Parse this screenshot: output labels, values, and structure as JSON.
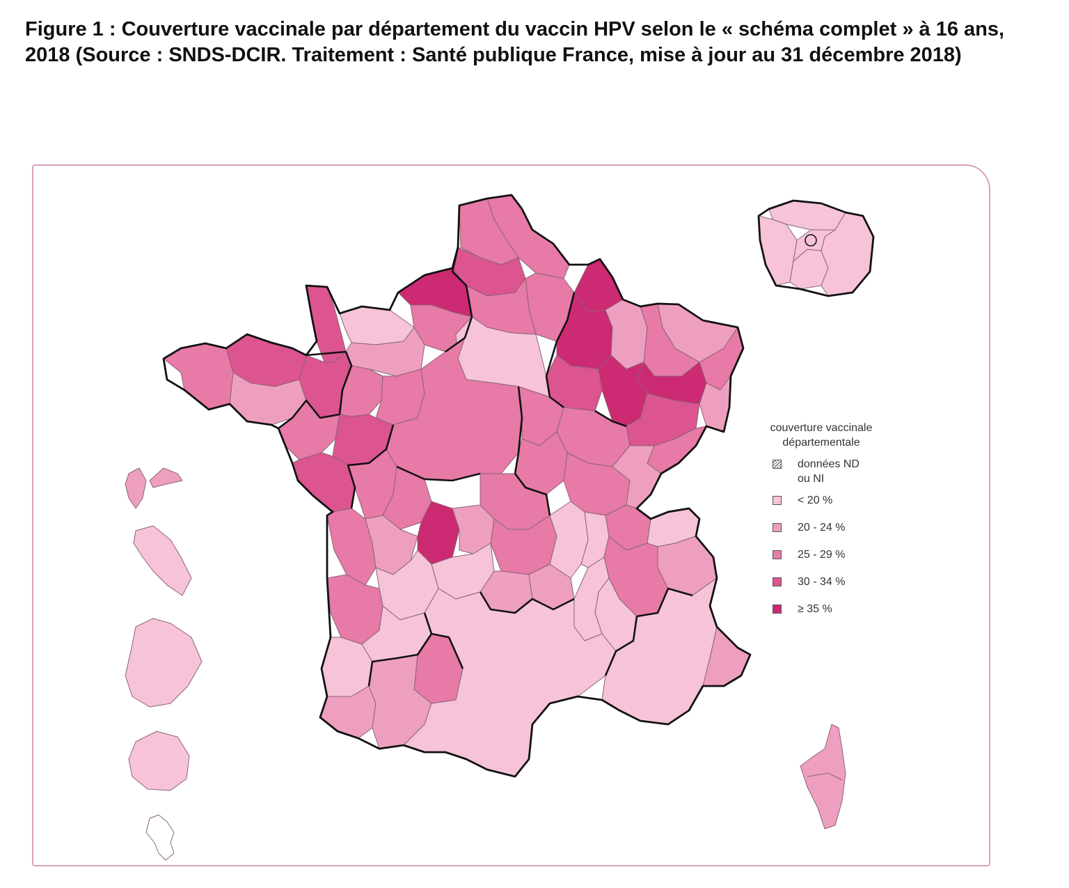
{
  "figure": {
    "caption": "Figure 1 : Couverture vaccinale par département du vaccin HPV selon le « schéma complet » à 16 ans, 2018 (Source : SNDS-DCIR. Traitement : Santé publique France, mise à jour au 31 décembre 2018)"
  },
  "legend": {
    "title_line1": "couverture vaccinale",
    "title_line2": "départementale",
    "classes": [
      {
        "key": "nd",
        "label": "données ND\nou NI",
        "color": "#ffffff",
        "hatched": true
      },
      {
        "key": "lt20",
        "label": "< 20 %",
        "color": "#f6c3d8",
        "hatched": false
      },
      {
        "key": "20_24",
        "label": "20 - 24 %",
        "color": "#ee9fbf",
        "hatched": false
      },
      {
        "key": "25_29",
        "label": "25 - 29 %",
        "color": "#e77aa7",
        "hatched": false
      },
      {
        "key": "30_34",
        "label": "30 - 34 %",
        "color": "#dc5490",
        "hatched": false
      },
      {
        "key": "ge35",
        "label": "≥ 35 %",
        "color": "#cc2a72",
        "hatched": false
      }
    ]
  },
  "map_colors": {
    "nord": "25_29",
    "pas_de_calais": "25_29",
    "somme": "30_34",
    "aisne": "25_29",
    "oise": "25_29",
    "seine_maritime": "ge35",
    "eure": "25_29",
    "manche": "30_34",
    "calvados": "lt20",
    "orne": "20_24",
    "ardennes": "ge35",
    "marne": "ge35",
    "meuse": "20_24",
    "meurthe_et_moselle": "25_29",
    "moselle": "20_24",
    "bas_rhin": "25_29",
    "vosges": "ge35",
    "haut_rhin": "20_24",
    "aube": "30_34",
    "haute_marne": "ge35",
    "ile_de_france": "lt20",
    "finistere": "25_29",
    "cotes_d_armor": "30_34",
    "morbihan": "20_24",
    "ille_et_vilaine": "30_34",
    "loire_atlantique": "25_29",
    "vendee": "30_34",
    "maine_et_loire": "30_34",
    "mayenne": "25_29",
    "sarthe": "25_29",
    "centre": "25_29",
    "cote_d_or": "25_29",
    "yonne": "25_29",
    "nievre": "25_29",
    "saone_et_loire": "25_29",
    "haute_saone": "30_34",
    "doubs": "25_29",
    "jura": "20_24",
    "deux_sevres": "25_29",
    "vienne": "25_29",
    "charente": "20_24",
    "charente_maritime": "25_29",
    "haute_vienne": "ge35",
    "creuse": "20_24",
    "correze": "lt20",
    "dordogne": "lt20",
    "gironde": "25_29",
    "landes": "lt20",
    "lot_et_garonne": "lt20",
    "pyrenees_atlantiques": "20_24",
    "allier": "25_29",
    "puy_de_dome": "25_29",
    "cantal": "20_24",
    "haute_loire": "20_24",
    "loire": "lt20",
    "rhone": "lt20",
    "ain": "25_29",
    "savoie": "20_24",
    "haute_savoie": "lt20",
    "isere": "25_29",
    "drome": "lt20",
    "ardeche": "lt20",
    "occitanie_ouest": "20_24",
    "tarn_et_garonne": "25_29",
    "occitanie_est": "lt20",
    "paca": "lt20",
    "alpes_maritimes": "20_24",
    "corse": "20_24",
    "guadeloupe": "20_24",
    "martinique": "lt20",
    "guyane": "lt20",
    "reunion": "lt20",
    "mayotte": "nd"
  }
}
